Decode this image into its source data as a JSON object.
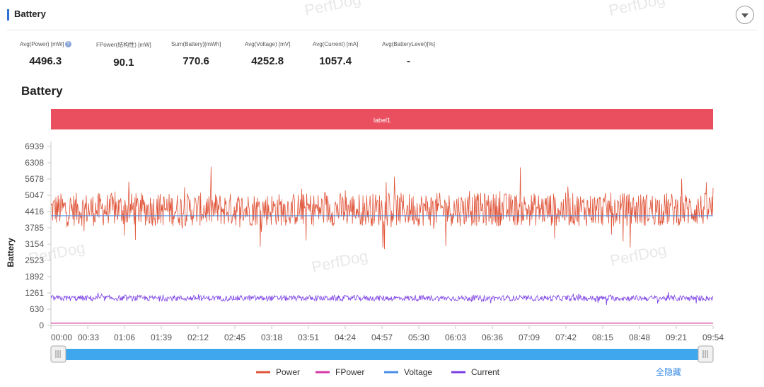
{
  "header": {
    "title": "Battery"
  },
  "metrics": [
    {
      "label": "Avg(Power) [mW]",
      "value": "4496.3",
      "has_info": true
    },
    {
      "label": "FPower(结构性) [mW]",
      "value": "90.1"
    },
    {
      "label": "Sum(Battery)[mWh]",
      "value": "770.6"
    },
    {
      "label": "Avg(Voltage) [mV]",
      "value": "4252.8"
    },
    {
      "label": "Avg(Current) [mA]",
      "value": "1057.4"
    },
    {
      "label": "Avg(BatteryLevel)[%]",
      "value": "-"
    }
  ],
  "section_title": "Battery",
  "watermark": "PerfDog",
  "hide_all_label": "全隐藏",
  "colors": {
    "power": "#e0553a",
    "fpower": "#d63aa6",
    "voltage": "#4a8fe8",
    "current": "#7b3fe4",
    "label_band": "#ea4f5f",
    "slider": "#3fa7ee",
    "link": "#3b8de8"
  },
  "chart_data": {
    "type": "line",
    "title": "Battery",
    "ylabel": "Battery",
    "xlabel": "",
    "ylim": [
      0,
      6939
    ],
    "yticks": [
      "0",
      "630",
      "1261",
      "1892",
      "2523",
      "3154",
      "3785",
      "4416",
      "5047",
      "5678",
      "6308",
      "6939"
    ],
    "xticks": [
      "00:00",
      "00:33",
      "01:06",
      "01:39",
      "02:12",
      "02:45",
      "03:18",
      "03:51",
      "04:24",
      "04:57",
      "05:30",
      "06:03",
      "06:36",
      "07:09",
      "07:42",
      "08:15",
      "08:48",
      "09:21",
      "09:54"
    ],
    "label_band": "label1",
    "legend_position": "bottom",
    "grid": false,
    "series": [
      {
        "name": "Power",
        "mean": 4496.3,
        "range": [
          2850,
          6250
        ]
      },
      {
        "name": "FPower",
        "mean": 90.1
      },
      {
        "name": "Voltage",
        "mean": 4252.8
      },
      {
        "name": "Current",
        "mean": 1057.4,
        "range": [
          700,
          1450
        ]
      }
    ]
  }
}
